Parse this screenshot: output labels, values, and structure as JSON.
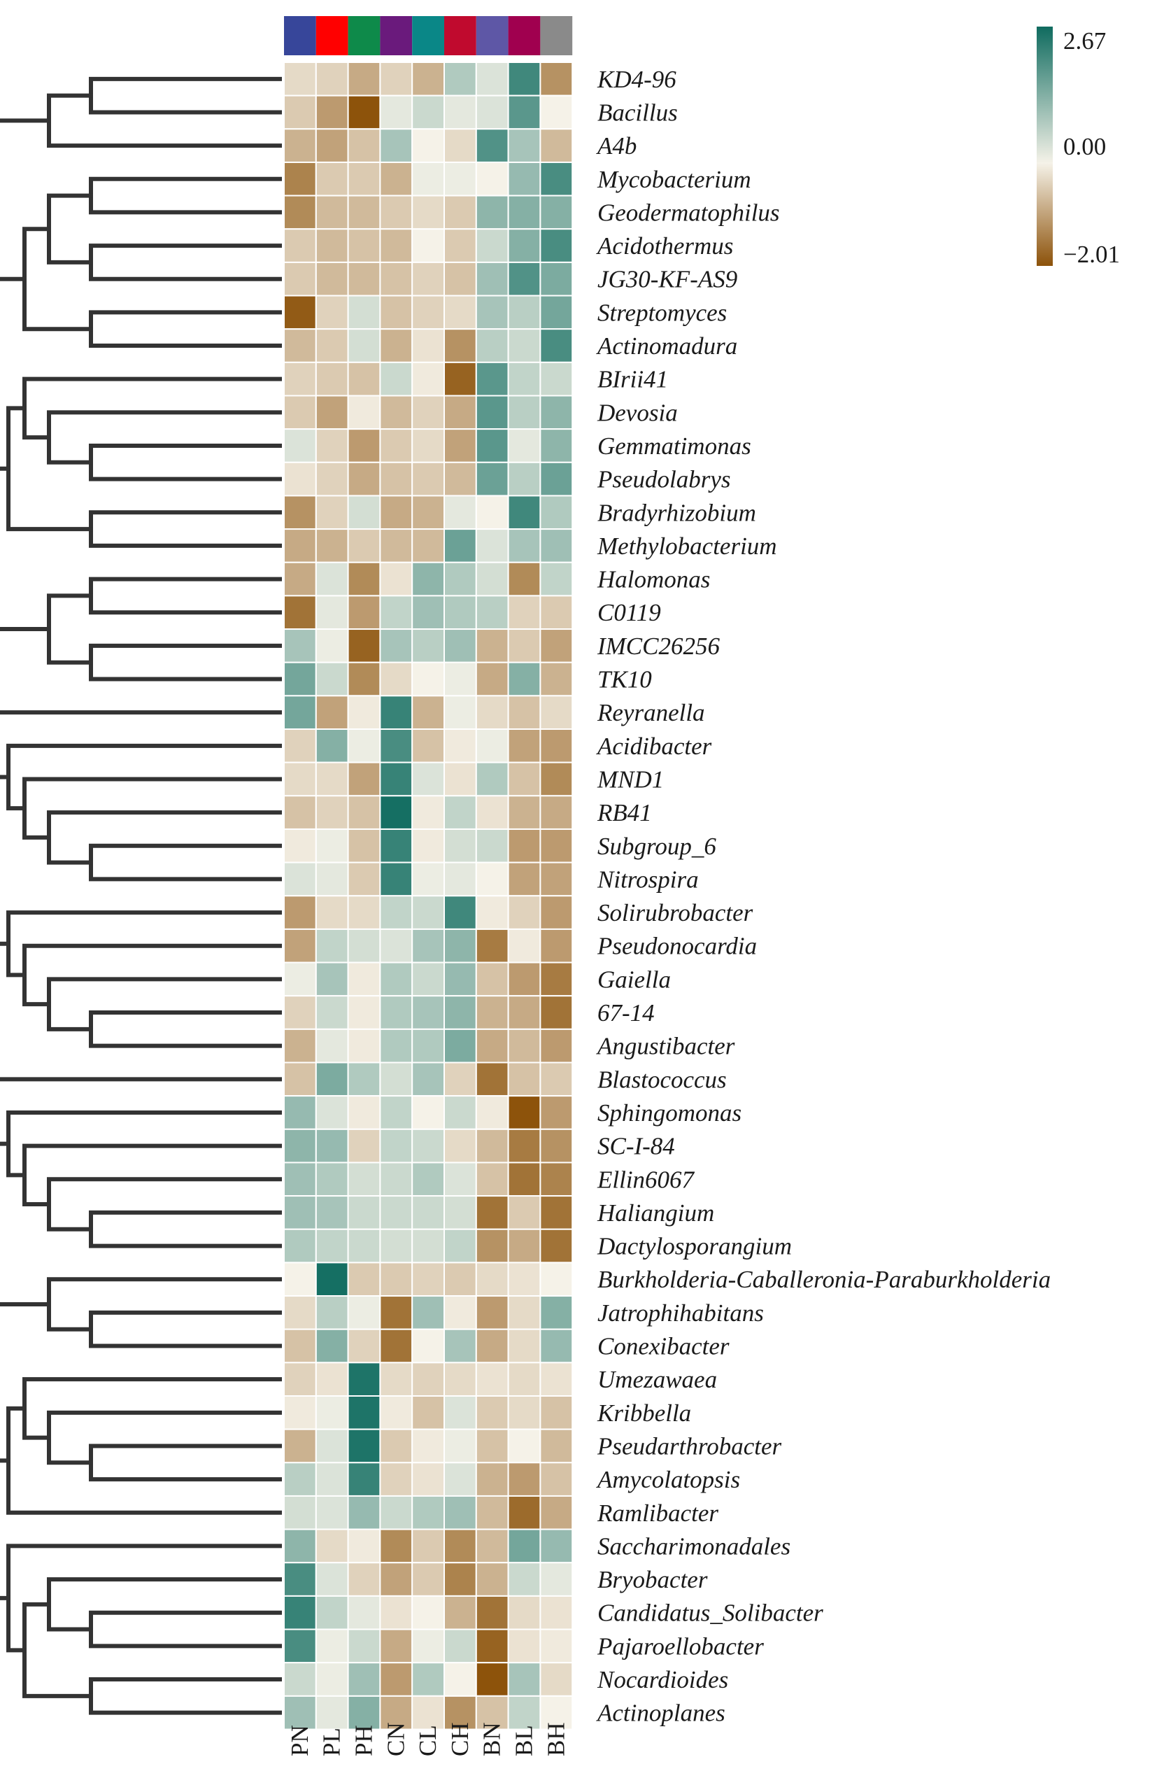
{
  "chart_data": {
    "type": "heatmap",
    "title": "",
    "columns": [
      "PN",
      "PL",
      "PH",
      "CN",
      "CL",
      "CH",
      "BN",
      "BL",
      "BH"
    ],
    "column_group_colors": [
      "#37469a",
      "#ff0000",
      "#0e8a4a",
      "#6a1a7c",
      "#0a8787",
      "#c00a2e",
      "#5e57a6",
      "#a0004f",
      "#8a8a8a"
    ],
    "rows": [
      "KD4-96",
      "Bacillus",
      "A4b",
      "Mycobacterium",
      "Geodermatophilus",
      "Acidothermus",
      "JG30-KF-AS9",
      "Streptomyces",
      "Actinomadura",
      "BIrii41",
      "Devosia",
      "Gemmatimonas",
      "Pseudolabrys",
      "Bradyrhizobium",
      "Methylobacterium",
      "Halomonas",
      "C0119",
      "IMCC26256",
      "TK10",
      "Reyranella",
      "Acidibacter",
      "MND1",
      "RB41",
      "Subgroup_6",
      "Nitrospira",
      "Solirubrobacter",
      "Pseudonocardia",
      "Gaiella",
      "67-14",
      "Angustibacter",
      "Blastococcus",
      "Sphingomonas",
      "SC-I-84",
      "Ellin6067",
      "Haliangium",
      "Dactylosporangium",
      "Burkholderia-Caballeronia-Paraburkholderia",
      "Jatrophihabitans",
      "Conexibacter",
      "Umezawaea",
      "Kribbella",
      "Pseudarthrobacter",
      "Amycolatopsis",
      "Ramlibacter",
      "Saccharimonadales",
      "Bryobacter",
      "Candidatus_Solibacter",
      "Pajaroellobacter",
      "Nocardioides",
      "Actinoplanes"
    ],
    "values": [
      [
        -0.3,
        -0.4,
        -0.9,
        -0.4,
        -0.8,
        0.8,
        0.3,
        2.1,
        -1.2
      ],
      [
        -0.5,
        -1.1,
        -2.0,
        0.2,
        0.5,
        0.2,
        0.3,
        1.8,
        0.0
      ],
      [
        -0.8,
        -1.0,
        -0.6,
        0.9,
        0.0,
        -0.3,
        1.9,
        0.9,
        -0.7
      ],
      [
        -1.4,
        -0.5,
        -0.5,
        -0.8,
        0.1,
        0.1,
        0.0,
        1.1,
        2.0
      ],
      [
        -1.3,
        -0.7,
        -0.7,
        -0.5,
        -0.3,
        -0.5,
        1.2,
        1.3,
        1.3
      ],
      [
        -0.5,
        -0.7,
        -0.6,
        -0.7,
        0.0,
        -0.5,
        0.5,
        1.3,
        2.0
      ],
      [
        -0.5,
        -0.7,
        -0.7,
        -0.6,
        -0.4,
        -0.6,
        1.0,
        1.9,
        1.4
      ],
      [
        -1.9,
        -0.4,
        0.4,
        -0.6,
        -0.4,
        -0.3,
        0.9,
        0.7,
        1.5
      ],
      [
        -0.7,
        -0.5,
        0.4,
        -0.8,
        -0.2,
        -1.2,
        0.7,
        0.5,
        2.0
      ],
      [
        -0.4,
        -0.5,
        -0.6,
        0.5,
        -0.1,
        -1.8,
        1.8,
        0.6,
        0.5
      ],
      [
        -0.5,
        -1.0,
        -0.1,
        -0.7,
        -0.4,
        -0.9,
        1.8,
        0.7,
        1.2
      ],
      [
        0.3,
        -0.4,
        -1.1,
        -0.5,
        -0.3,
        -1.0,
        1.8,
        0.2,
        1.2
      ],
      [
        -0.2,
        -0.4,
        -0.9,
        -0.6,
        -0.5,
        -0.7,
        1.6,
        0.7,
        1.6
      ],
      [
        -1.2,
        -0.4,
        0.4,
        -0.9,
        -0.8,
        0.2,
        0.0,
        2.1,
        0.8
      ],
      [
        -0.9,
        -0.8,
        -0.5,
        -0.7,
        -0.7,
        1.6,
        0.3,
        0.9,
        1.0
      ],
      [
        -0.9,
        0.3,
        -1.3,
        -0.2,
        1.2,
        0.8,
        0.4,
        -1.3,
        0.6
      ],
      [
        -1.6,
        0.2,
        -1.1,
        0.6,
        1.0,
        0.8,
        0.7,
        -0.4,
        -0.5
      ],
      [
        0.9,
        0.1,
        -1.8,
        0.9,
        0.7,
        1.0,
        -0.8,
        -0.5,
        -1.0
      ],
      [
        1.5,
        0.5,
        -1.3,
        -0.3,
        0.0,
        0.1,
        -0.9,
        1.3,
        -0.8
      ],
      [
        1.5,
        -1.0,
        -0.1,
        2.2,
        -0.8,
        0.1,
        -0.3,
        -0.6,
        -0.3
      ],
      [
        -0.4,
        1.3,
        0.1,
        2.0,
        -0.6,
        -0.1,
        0.1,
        -1.0,
        -1.1
      ],
      [
        -0.3,
        -0.3,
        -1.0,
        2.2,
        0.3,
        -0.2,
        0.8,
        -0.6,
        -1.3
      ],
      [
        -0.6,
        -0.4,
        -0.6,
        2.6,
        -0.1,
        0.6,
        -0.2,
        -0.8,
        -0.9
      ],
      [
        -0.1,
        0.1,
        -0.6,
        2.2,
        -0.1,
        0.4,
        0.5,
        -1.1,
        -1.1
      ],
      [
        0.3,
        0.2,
        -0.5,
        2.2,
        0.1,
        0.2,
        0.0,
        -1.0,
        -1.0
      ],
      [
        -1.1,
        -0.3,
        -0.3,
        0.6,
        0.5,
        2.1,
        -0.1,
        -0.4,
        -1.1
      ],
      [
        -1.0,
        0.6,
        0.4,
        0.3,
        0.9,
        1.2,
        -1.5,
        -0.1,
        -1.1
      ],
      [
        0.1,
        0.9,
        -0.1,
        0.8,
        0.5,
        1.1,
        -0.6,
        -1.1,
        -1.5
      ],
      [
        -0.4,
        0.5,
        -0.1,
        0.8,
        0.9,
        1.2,
        -0.8,
        -0.9,
        -1.6
      ],
      [
        -0.8,
        0.2,
        -0.1,
        0.8,
        0.8,
        1.4,
        -0.9,
        -0.7,
        -1.1
      ],
      [
        -0.6,
        1.4,
        0.8,
        0.4,
        0.9,
        -0.4,
        -1.6,
        -0.6,
        -0.5
      ],
      [
        1.1,
        0.3,
        -0.1,
        0.6,
        0.0,
        0.5,
        -0.1,
        -2.0,
        -1.1
      ],
      [
        1.2,
        1.1,
        -0.4,
        0.6,
        0.5,
        -0.3,
        -0.7,
        -1.5,
        -1.2
      ],
      [
        1.0,
        0.8,
        0.4,
        0.5,
        0.8,
        0.3,
        -0.6,
        -1.6,
        -1.4
      ],
      [
        1.0,
        0.9,
        0.5,
        0.5,
        0.5,
        0.4,
        -1.6,
        -0.5,
        -1.6
      ],
      [
        0.8,
        0.6,
        0.5,
        0.4,
        0.4,
        0.6,
        -1.2,
        -0.9,
        -1.6
      ],
      [
        0.0,
        2.6,
        -0.5,
        -0.5,
        -0.4,
        -0.5,
        -0.3,
        -0.2,
        0.0
      ],
      [
        -0.3,
        0.7,
        0.1,
        -1.6,
        1.0,
        -0.1,
        -1.1,
        -0.3,
        1.3
      ],
      [
        -0.6,
        1.3,
        -0.4,
        -1.6,
        0.0,
        0.9,
        -0.9,
        -0.3,
        1.1
      ],
      [
        -0.4,
        -0.2,
        2.5,
        -0.3,
        -0.4,
        -0.3,
        -0.2,
        -0.3,
        -0.2
      ],
      [
        -0.1,
        0.1,
        2.5,
        -0.1,
        -0.6,
        0.3,
        -0.5,
        -0.3,
        -0.6
      ],
      [
        -0.8,
        0.3,
        2.5,
        -0.5,
        -0.1,
        0.1,
        -0.6,
        0.0,
        -0.7
      ],
      [
        0.7,
        0.3,
        2.2,
        -0.4,
        -0.2,
        0.3,
        -0.8,
        -1.1,
        -0.6
      ],
      [
        0.4,
        0.3,
        1.1,
        0.5,
        0.8,
        1.0,
        -0.7,
        -1.7,
        -0.9
      ],
      [
        1.2,
        -0.3,
        -0.1,
        -1.3,
        -0.5,
        -1.3,
        -0.7,
        1.5,
        1.1
      ],
      [
        2.0,
        0.3,
        -0.4,
        -1.0,
        -0.5,
        -1.4,
        -0.8,
        0.5,
        0.2
      ],
      [
        2.2,
        0.6,
        0.2,
        -0.2,
        0.0,
        -0.8,
        -1.6,
        -0.3,
        -0.2
      ],
      [
        2.0,
        0.1,
        0.5,
        -0.9,
        0.1,
        0.5,
        -1.8,
        -0.2,
        -0.1
      ],
      [
        0.5,
        0.1,
        1.0,
        -1.1,
        0.8,
        0.0,
        -2.0,
        0.9,
        -0.3
      ],
      [
        1.0,
        0.2,
        1.3,
        -0.9,
        -0.2,
        -1.2,
        -0.6,
        0.6,
        0.0
      ]
    ],
    "scale": {
      "min": -2.01,
      "max": 2.67,
      "low_color": "#8c520a",
      "mid_color": "#f5f2e8",
      "high_color": "#0f6b5f"
    },
    "legend": {
      "position": "top-right",
      "ticks": [
        "2.67",
        "0.00",
        "−2.01"
      ]
    },
    "row_dendrogram": true
  }
}
